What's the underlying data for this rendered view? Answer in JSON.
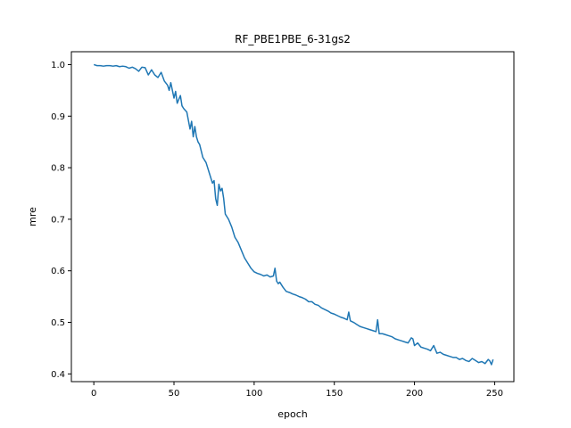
{
  "chart_data": {
    "type": "line",
    "title": "RF_PBE1PBE_6-31gs2",
    "xlabel": "epoch",
    "ylabel": "mre",
    "xlim": [
      -14,
      262
    ],
    "ylim": [
      0.385,
      1.025
    ],
    "xticks": [
      0,
      50,
      100,
      150,
      200,
      250
    ],
    "yticks": [
      0.4,
      0.5,
      0.6,
      0.7,
      0.8,
      0.9,
      1.0
    ],
    "ytick_labels": [
      "0.4",
      "0.5",
      "0.6",
      "0.7",
      "0.8",
      "0.9",
      "1.0"
    ],
    "grid": false,
    "series": [
      {
        "color": "#1f77b4",
        "x": [
          0,
          2,
          4,
          6,
          8,
          10,
          12,
          14,
          16,
          18,
          20,
          22,
          24,
          26,
          28,
          30,
          32,
          34,
          36,
          38,
          40,
          42,
          44,
          46,
          47,
          48,
          50,
          51,
          52,
          54,
          55,
          56,
          58,
          60,
          61,
          62,
          63,
          64,
          65,
          66,
          68,
          70,
          71,
          72,
          74,
          75,
          76,
          77,
          78,
          79,
          80,
          81,
          82,
          84,
          86,
          88,
          90,
          92,
          94,
          96,
          98,
          100,
          102,
          104,
          106,
          108,
          110,
          112,
          113,
          114,
          115,
          116,
          118,
          120,
          122,
          124,
          126,
          128,
          130,
          132,
          134,
          136,
          138,
          140,
          142,
          144,
          146,
          148,
          150,
          152,
          154,
          156,
          158,
          159,
          160,
          162,
          164,
          166,
          168,
          170,
          172,
          174,
          176,
          177,
          178,
          180,
          182,
          184,
          186,
          188,
          190,
          192,
          194,
          196,
          198,
          199,
          200,
          202,
          204,
          206,
          208,
          210,
          212,
          214,
          216,
          218,
          220,
          222,
          224,
          226,
          228,
          230,
          232,
          234,
          236,
          238,
          240,
          242,
          244,
          246,
          247,
          248,
          249
        ],
        "y": [
          1.0,
          0.998,
          0.998,
          0.997,
          0.998,
          0.998,
          0.997,
          0.998,
          0.996,
          0.997,
          0.996,
          0.993,
          0.995,
          0.992,
          0.987,
          0.995,
          0.994,
          0.98,
          0.99,
          0.98,
          0.975,
          0.985,
          0.968,
          0.96,
          0.95,
          0.965,
          0.935,
          0.948,
          0.925,
          0.94,
          0.92,
          0.915,
          0.908,
          0.875,
          0.89,
          0.86,
          0.88,
          0.86,
          0.85,
          0.845,
          0.82,
          0.81,
          0.8,
          0.79,
          0.77,
          0.775,
          0.74,
          0.727,
          0.768,
          0.755,
          0.76,
          0.74,
          0.71,
          0.7,
          0.685,
          0.665,
          0.655,
          0.64,
          0.625,
          0.615,
          0.605,
          0.598,
          0.595,
          0.593,
          0.59,
          0.592,
          0.588,
          0.59,
          0.605,
          0.58,
          0.575,
          0.578,
          0.568,
          0.56,
          0.558,
          0.555,
          0.553,
          0.55,
          0.548,
          0.545,
          0.54,
          0.54,
          0.535,
          0.533,
          0.528,
          0.525,
          0.522,
          0.518,
          0.516,
          0.513,
          0.51,
          0.508,
          0.505,
          0.52,
          0.503,
          0.5,
          0.496,
          0.492,
          0.49,
          0.488,
          0.486,
          0.484,
          0.482,
          0.505,
          0.478,
          0.478,
          0.476,
          0.474,
          0.472,
          0.468,
          0.466,
          0.464,
          0.462,
          0.46,
          0.47,
          0.468,
          0.455,
          0.46,
          0.452,
          0.45,
          0.448,
          0.445,
          0.455,
          0.44,
          0.442,
          0.438,
          0.436,
          0.434,
          0.432,
          0.432,
          0.428,
          0.43,
          0.426,
          0.424,
          0.43,
          0.426,
          0.422,
          0.424,
          0.42,
          0.428,
          0.425,
          0.418,
          0.428
        ]
      }
    ]
  }
}
